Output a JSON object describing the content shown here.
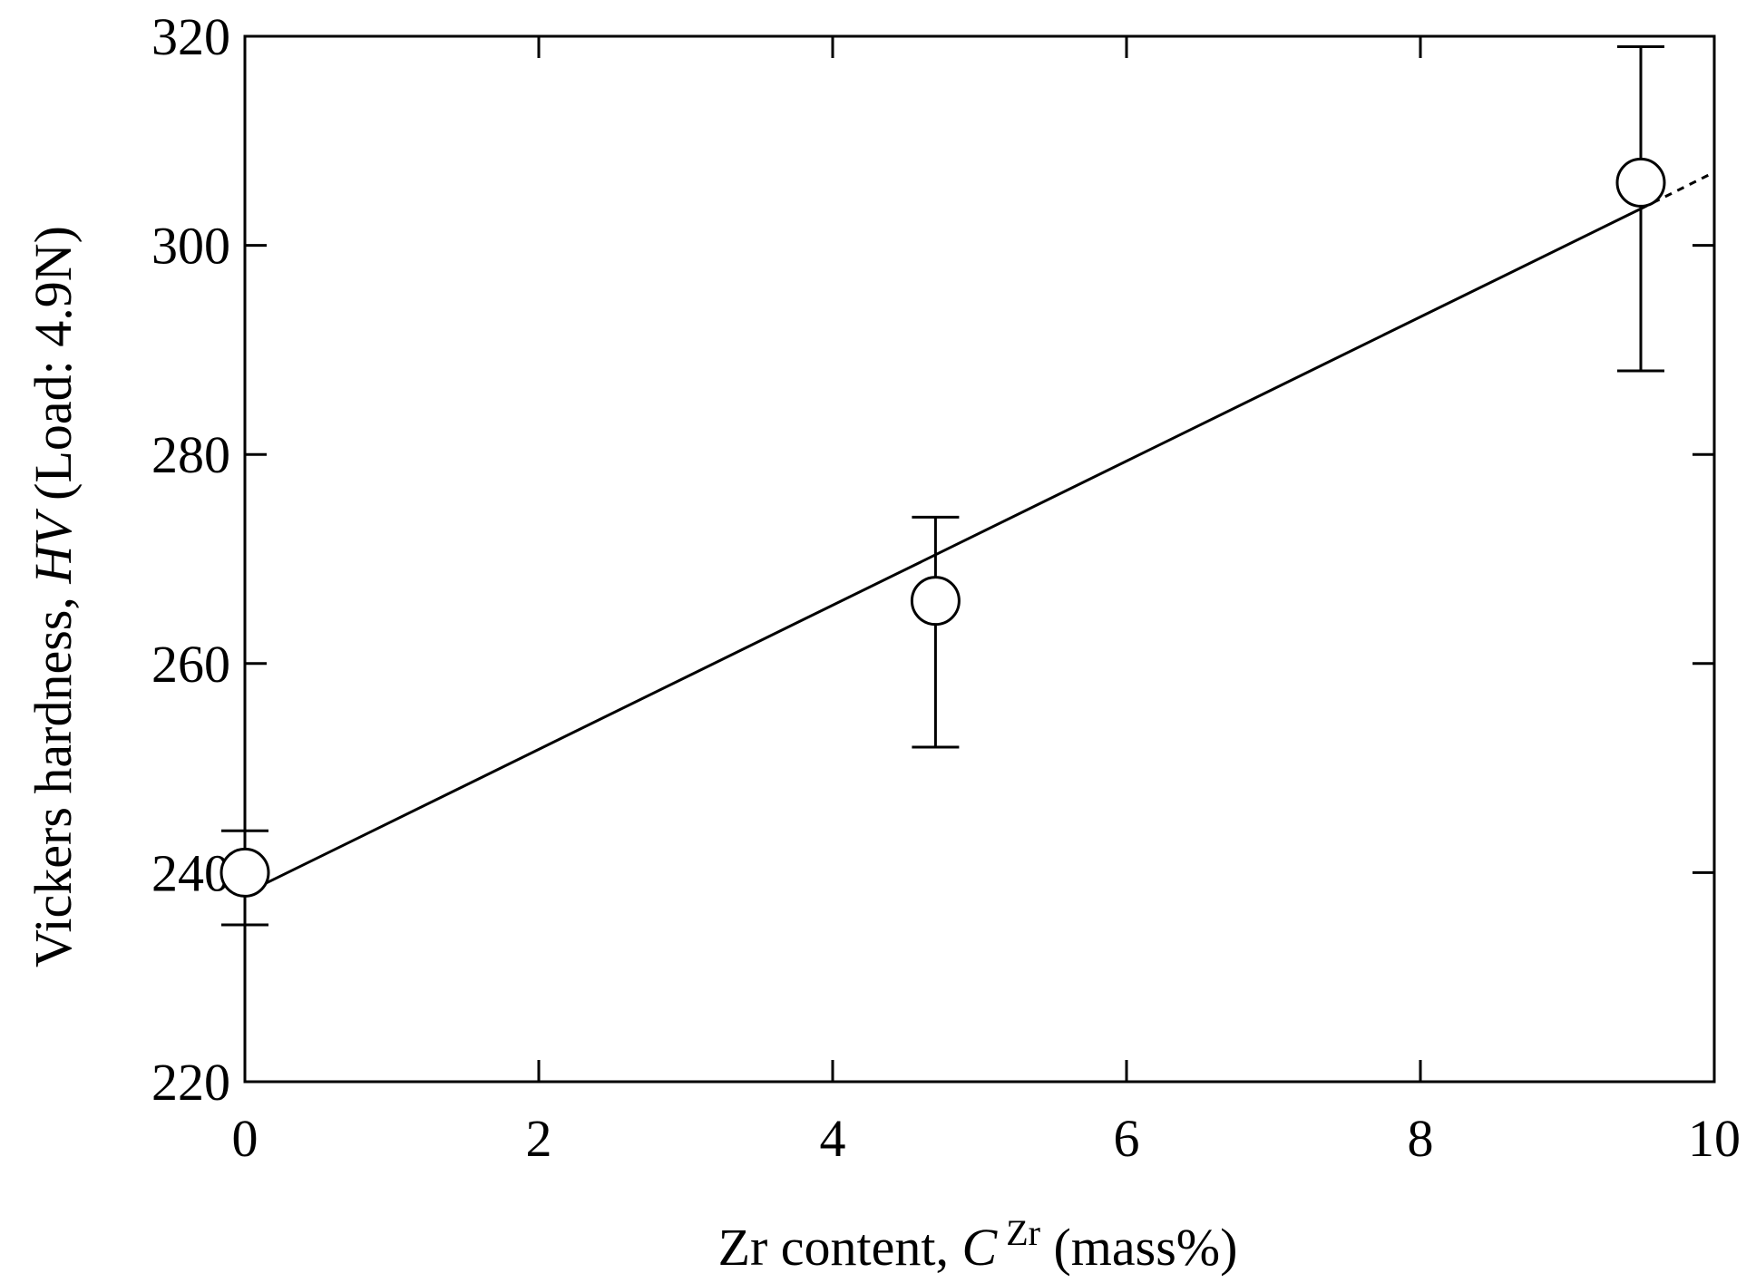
{
  "chart_data": {
    "type": "scatter",
    "xlabel": {
      "prefix": "Zr content, ",
      "symbol": "C",
      "superscript": "Zr",
      "suffix": " (mass%)"
    },
    "ylabel": {
      "prefix": "Vickers hardness, ",
      "symbol": "HV",
      "suffix": " (Load: 4.9N)"
    },
    "xlim": [
      0,
      10
    ],
    "ylim": [
      220,
      320
    ],
    "xticks": [
      0,
      2,
      4,
      6,
      8,
      10
    ],
    "yticks": [
      220,
      240,
      260,
      280,
      300,
      320
    ],
    "xtick_labels": [
      "0",
      "2",
      "4",
      "6",
      "8",
      "10"
    ],
    "ytick_labels": [
      "220",
      "240",
      "260",
      "280",
      "300",
      "320"
    ],
    "grid": false,
    "series": [
      {
        "marker": "open-circle",
        "points": [
          {
            "x": 0.0,
            "y": 240,
            "err_low": 235,
            "err_high": 244
          },
          {
            "x": 4.7,
            "y": 266,
            "err_low": 252,
            "err_high": 274
          },
          {
            "x": 9.5,
            "y": 306,
            "err_low": 288,
            "err_high": 319
          }
        ]
      }
    ],
    "fit_line": {
      "solid": {
        "x": [
          0.0,
          9.5
        ],
        "y": [
          238,
          303.5
        ]
      },
      "dashed": {
        "x": [
          9.5,
          10.0
        ],
        "y": [
          303.5,
          307
        ]
      }
    },
    "colors": {
      "line": "#000000",
      "marker_fill": "#ffffff"
    }
  }
}
